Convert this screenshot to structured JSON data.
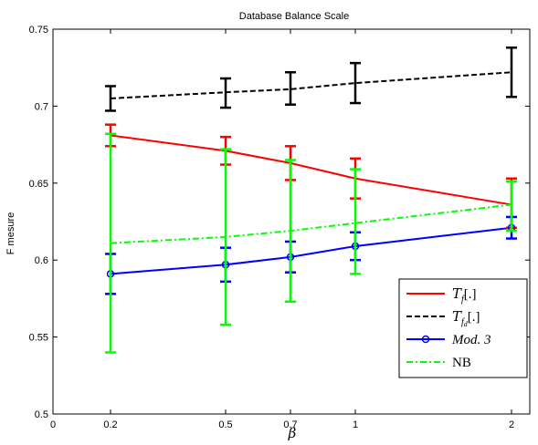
{
  "chart_data": {
    "type": "line",
    "title": "Database Balance Scale",
    "xlabel": "β",
    "ylabel": "F mesure",
    "x": [
      0.2,
      0.5,
      0.7,
      1,
      2
    ],
    "x_tick_labels": [
      "0",
      "0.2",
      "0.5",
      "0.7",
      "1",
      "2"
    ],
    "y_tick_labels": [
      "0.5",
      "0.55",
      "0.6",
      "0.65",
      "0.7",
      "0.75"
    ],
    "ylim": [
      0.5,
      0.75
    ],
    "grid": false,
    "legend_position": "bottom-right",
    "series": [
      {
        "name": "T_f[.]",
        "legend_main": "T",
        "legend_sub": "f",
        "legend_subsub": "",
        "legend_tail": "[.]",
        "color": "#ff0000",
        "dash": "solid",
        "marker": "none",
        "values": [
          0.681,
          0.671,
          0.663,
          0.653,
          0.636
        ],
        "err_low": [
          0.674,
          0.662,
          0.652,
          0.64,
          0.621
        ],
        "err_high": [
          0.688,
          0.68,
          0.674,
          0.666,
          0.653
        ]
      },
      {
        "name": "T_fd[.]",
        "legend_main": "T",
        "legend_sub": "f",
        "legend_subsub": "d",
        "legend_tail": "[.]",
        "color": "#000000",
        "dash": "dashed",
        "marker": "none",
        "values": [
          0.705,
          0.709,
          0.711,
          0.715,
          0.722
        ],
        "err_low": [
          0.697,
          0.699,
          0.701,
          0.702,
          0.706
        ],
        "err_high": [
          0.713,
          0.718,
          0.722,
          0.728,
          0.738
        ]
      },
      {
        "name": "Mod. 3",
        "legend_main": "Mod. 3",
        "color": "#0000ff",
        "dash": "solid",
        "marker": "circle",
        "values": [
          0.591,
          0.597,
          0.602,
          0.609,
          0.621
        ],
        "err_low": [
          0.578,
          0.586,
          0.592,
          0.6,
          0.614
        ],
        "err_high": [
          0.604,
          0.608,
          0.612,
          0.618,
          0.628
        ]
      },
      {
        "name": "NB",
        "legend_main": "NB",
        "color": "#00ff00",
        "dash": "dashdot",
        "marker": "none",
        "values": [
          0.611,
          0.615,
          0.619,
          0.624,
          0.636
        ],
        "err_low": [
          0.54,
          0.558,
          0.573,
          0.591,
          0.619
        ],
        "err_high": [
          0.682,
          0.672,
          0.665,
          0.659,
          0.651
        ]
      }
    ]
  }
}
